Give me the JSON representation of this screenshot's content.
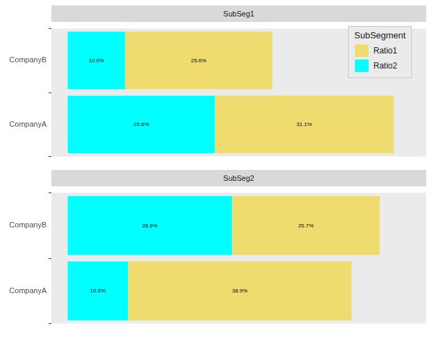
{
  "chart_data": [
    {
      "type": "bar",
      "title": "SubSeg1",
      "orientation": "horizontal",
      "stacked": true,
      "data_labels": true,
      "tick_labels": "y",
      "grid": false,
      "legend": "top right",
      "legend_title": "SubSegment",
      "categories": [
        "CompanyB",
        "CompanyA"
      ],
      "series": [
        {
          "name": "Ratio2",
          "color": "#00FFFF",
          "values": [
            10.0,
            25.6
          ],
          "value_labels": [
            "10.0%",
            "25.6%"
          ]
        },
        {
          "name": "Ratio1",
          "color": "#F0DC6E",
          "values": [
            25.6,
            31.1
          ],
          "value_labels": [
            "25.6%",
            "31.1%"
          ]
        }
      ]
    },
    {
      "type": "bar",
      "title": "SubSeg2",
      "orientation": "horizontal",
      "stacked": true,
      "data_labels": true,
      "tick_labels": "y",
      "grid": false,
      "categories": [
        "CompanyB",
        "CompanyA"
      ],
      "series": [
        {
          "name": "Ratio2",
          "color": "#00FFFF",
          "values": [
            28.6,
            10.5
          ],
          "value_labels": [
            "28.6%",
            "10.5%"
          ]
        },
        {
          "name": "Ratio1",
          "color": "#F0DC6E",
          "values": [
            25.7,
            38.9
          ],
          "value_labels": [
            "25.7%",
            "38.9%"
          ]
        }
      ]
    }
  ]
}
